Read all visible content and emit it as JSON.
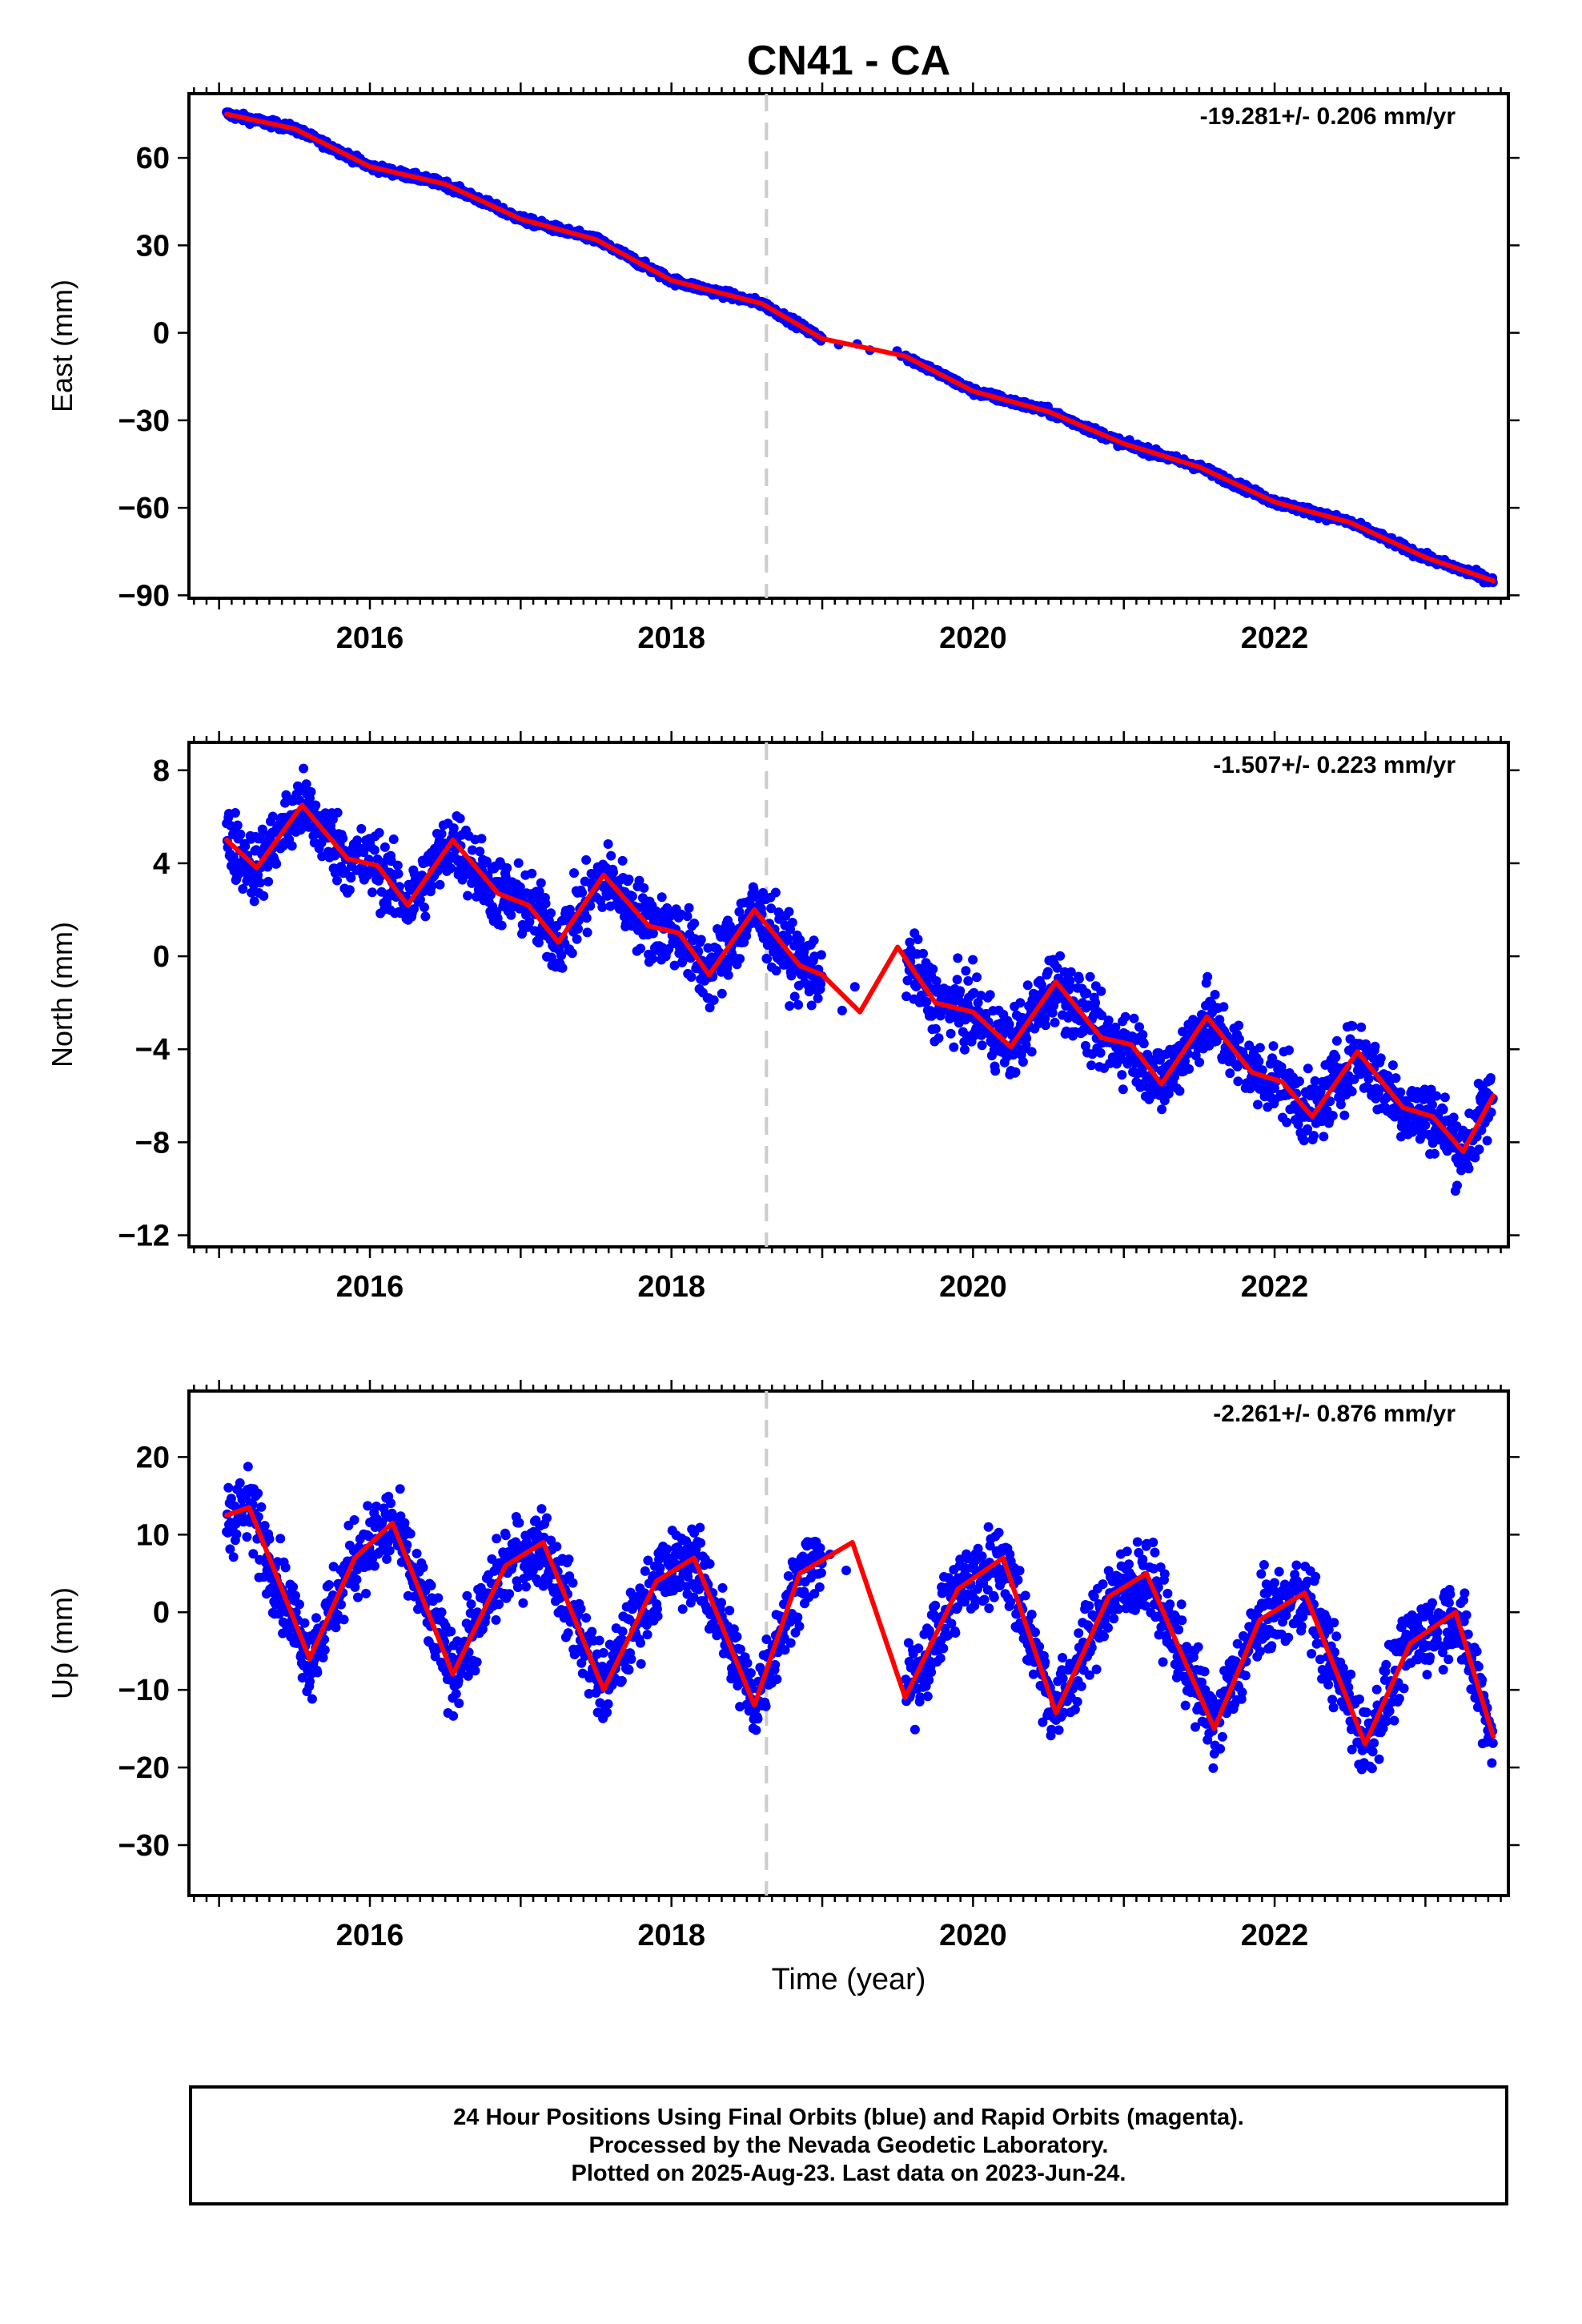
{
  "title": "CN41 - CA",
  "xlabel": "Time (year)",
  "footer": {
    "line1": "24 Hour Positions Using Final Orbits (blue) and Rapid Orbits (magenta).",
    "line2": "Processed by the Nevada Geodetic Laboratory.",
    "line3": "Plotted on 2025-Aug-23. Last data on 2023-Jun-24."
  },
  "colors": {
    "final_orbits": "#0000ff",
    "fit": "#ff0000",
    "event_line": "#cccccc"
  },
  "chart_data": [
    {
      "type": "scatter",
      "component": "East",
      "ylabel": "East (mm)",
      "rate_label": "-19.281+/- 0.206 mm/yr",
      "xlim": [
        2014.8,
        2023.55
      ],
      "ylim": [
        -91,
        82
      ],
      "yticks": [
        -90,
        -60,
        -30,
        0,
        30,
        60
      ],
      "xticks": [
        2016,
        2018,
        2020,
        2022
      ],
      "event_line_x": 2018.63,
      "data_gap": [
        2019.0,
        2019.55
      ],
      "series": [
        {
          "style": "scatter",
          "t": [
            2015.05,
            2015.5,
            2016.0,
            2016.5,
            2017.0,
            2017.5,
            2018.0,
            2018.6,
            2019.0,
            2019.6,
            2020.0,
            2020.5,
            2021.0,
            2021.5,
            2022.0,
            2022.5,
            2023.0,
            2023.45
          ],
          "y": [
            76,
            70,
            58,
            51,
            39,
            32,
            18,
            10,
            -2,
            -8,
            -20,
            -27,
            -38,
            -46,
            -58,
            -65,
            -77,
            -86
          ]
        },
        {
          "style": "line",
          "t": [
            2015.05,
            2015.5,
            2016.0,
            2016.5,
            2017.0,
            2017.5,
            2018.0,
            2018.6,
            2019.0,
            2019.55,
            2020.0,
            2020.5,
            2021.0,
            2021.5,
            2022.0,
            2022.5,
            2023.0,
            2023.45
          ],
          "y": [
            75,
            70,
            57,
            51,
            39,
            32,
            18,
            10,
            -2,
            -8,
            -20,
            -27,
            -38,
            -46,
            -58,
            -65,
            -77,
            -85
          ]
        }
      ]
    },
    {
      "type": "scatter",
      "component": "North",
      "ylabel": "North (mm)",
      "rate_label": "-1.507+/- 0.223 mm/yr",
      "xlim": [
        2014.8,
        2023.55
      ],
      "ylim": [
        -12.5,
        9.2
      ],
      "yticks": [
        -12,
        -8,
        -4,
        0,
        4,
        8
      ],
      "xticks": [
        2016,
        2018,
        2020,
        2022
      ],
      "event_line_x": 2018.63,
      "data_gap": [
        2019.0,
        2019.55
      ],
      "series": [
        {
          "style": "scatter",
          "t": [
            2015.05,
            2015.5,
            2016.0,
            2016.5,
            2017.0,
            2017.5,
            2018.0,
            2018.5,
            2019.0,
            2019.7,
            2020.2,
            2020.55,
            2021.0,
            2021.5,
            2022.0,
            2022.55,
            2023.0,
            2023.45
          ],
          "y": [
            5,
            6.5,
            4,
            5,
            2,
            3.5,
            1,
            2,
            -1,
            -1.5,
            -4,
            -1,
            -4,
            -3,
            -5,
            -4,
            -7,
            -6
          ]
        },
        {
          "style": "line",
          "t": [
            2015.05,
            2015.25,
            2015.55,
            2015.85,
            2016.05,
            2016.25,
            2016.55,
            2016.85,
            2017.05,
            2017.25,
            2017.55,
            2017.85,
            2018.05,
            2018.25,
            2018.55,
            2018.85,
            2019.0,
            2019.25,
            2019.5,
            2019.75,
            2020.0,
            2020.25,
            2020.55,
            2020.85,
            2021.05,
            2021.25,
            2021.55,
            2021.85,
            2022.05,
            2022.25,
            2022.55,
            2022.85,
            2023.05,
            2023.25,
            2023.45
          ],
          "y": [
            5,
            3.8,
            6.5,
            4.2,
            3.9,
            2.2,
            5.0,
            2.7,
            2.2,
            0.6,
            3.5,
            1.3,
            1.0,
            -0.8,
            2.0,
            -0.4,
            -0.8,
            -2.4,
            0.4,
            -2.0,
            -2.4,
            -3.9,
            -1.1,
            -3.5,
            -3.8,
            -5.5,
            -2.6,
            -5.0,
            -5.4,
            -6.9,
            -4.1,
            -6.5,
            -6.9,
            -8.4,
            -6.0
          ]
        }
      ]
    },
    {
      "type": "scatter",
      "component": "Up",
      "ylabel": "Up (mm)",
      "rate_label": "-2.261+/- 0.876 mm/yr",
      "xlim": [
        2014.8,
        2023.55
      ],
      "ylim": [
        -36.5,
        28.5
      ],
      "yticks": [
        -30,
        -20,
        -10,
        0,
        10,
        20
      ],
      "xticks": [
        2016,
        2018,
        2020,
        2022
      ],
      "event_line_x": 2018.63,
      "data_gap": [
        2019.0,
        2019.55
      ],
      "series": [
        {
          "style": "scatter",
          "t": [
            2015.05,
            2015.3,
            2015.6,
            2016.2,
            2016.55,
            2017.15,
            2017.55,
            2018.15,
            2018.6,
            2019.2,
            2019.6,
            2020.2,
            2020.6,
            2021.15,
            2021.6,
            2022.2,
            2022.6,
            2023.15,
            2023.45
          ],
          "y": [
            12,
            8,
            -6,
            12,
            -8,
            8,
            -12,
            8,
            -14,
            8,
            -10,
            8,
            -12,
            5,
            -16,
            3,
            -16,
            2,
            -14
          ]
        },
        {
          "style": "line",
          "t": [
            2015.05,
            2015.2,
            2015.6,
            2015.9,
            2016.15,
            2016.55,
            2016.9,
            2017.15,
            2017.55,
            2017.9,
            2018.15,
            2018.55,
            2018.85,
            2019.2,
            2019.55,
            2019.9,
            2020.2,
            2020.55,
            2020.9,
            2021.15,
            2021.6,
            2021.9,
            2022.2,
            2022.6,
            2022.9,
            2023.2,
            2023.45
          ],
          "y": [
            12.5,
            13.5,
            -6,
            7,
            11.5,
            -8,
            6,
            9,
            -10,
            4,
            7,
            -12,
            5,
            9,
            -11,
            3,
            7,
            -13,
            2,
            5,
            -15,
            -1,
            2.5,
            -17,
            -4,
            0,
            -16
          ]
        }
      ]
    }
  ]
}
